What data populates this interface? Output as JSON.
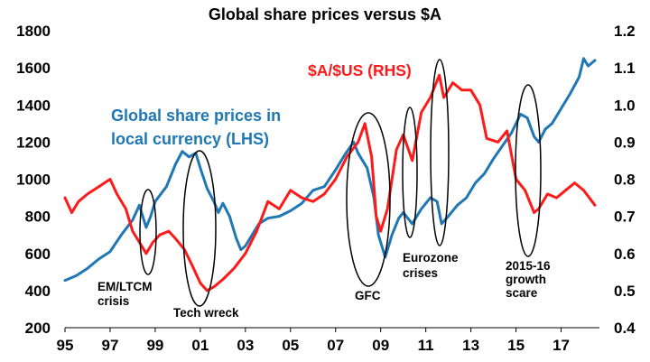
{
  "chart_data": {
    "type": "line",
    "title": "Global share prices versus $A",
    "x_axis": {
      "ticks": [
        "95",
        "97",
        "99",
        "01",
        "03",
        "05",
        "07",
        "09",
        "11",
        "13",
        "15",
        "17"
      ],
      "tick_values": [
        1995,
        1997,
        1999,
        2001,
        2003,
        2005,
        2007,
        2009,
        2011,
        2013,
        2015,
        2017
      ],
      "range": [
        1995,
        2018.7
      ]
    },
    "y_left": {
      "ticks": [
        "200",
        "400",
        "600",
        "800",
        "1000",
        "1200",
        "1400",
        "1600",
        "1800"
      ],
      "range": [
        200,
        1800
      ]
    },
    "y_right": {
      "ticks": [
        "0.4",
        "0.5",
        "0.6",
        "0.7",
        "0.8",
        "0.9",
        "1.0",
        "1.1",
        "1.2"
      ],
      "range": [
        0.4,
        1.2
      ]
    },
    "grid": false,
    "series": [
      {
        "name": "Global share prices in local currency (LHS)",
        "label_lines": [
          "Global share prices in",
          "local currency (LHS)"
        ],
        "axis": "left",
        "color": "#1f77b4",
        "points": [
          [
            1995.0,
            455
          ],
          [
            1995.5,
            480
          ],
          [
            1996.0,
            520
          ],
          [
            1996.5,
            570
          ],
          [
            1997.0,
            610
          ],
          [
            1997.5,
            700
          ],
          [
            1998.0,
            780
          ],
          [
            1998.3,
            860
          ],
          [
            1998.6,
            740
          ],
          [
            1998.8,
            800
          ],
          [
            1999.0,
            880
          ],
          [
            1999.5,
            960
          ],
          [
            1999.9,
            1080
          ],
          [
            2000.2,
            1150
          ],
          [
            2000.5,
            1120
          ],
          [
            2000.8,
            1140
          ],
          [
            2001.0,
            1060
          ],
          [
            2001.3,
            950
          ],
          [
            2001.6,
            880
          ],
          [
            2001.8,
            820
          ],
          [
            2002.0,
            870
          ],
          [
            2002.3,
            800
          ],
          [
            2002.6,
            680
          ],
          [
            2002.8,
            620
          ],
          [
            2003.0,
            640
          ],
          [
            2003.3,
            700
          ],
          [
            2003.6,
            760
          ],
          [
            2004.0,
            790
          ],
          [
            2004.5,
            800
          ],
          [
            2005.0,
            830
          ],
          [
            2005.5,
            870
          ],
          [
            2006.0,
            940
          ],
          [
            2006.5,
            960
          ],
          [
            2007.0,
            1050
          ],
          [
            2007.4,
            1130
          ],
          [
            2007.8,
            1200
          ],
          [
            2008.0,
            1140
          ],
          [
            2008.4,
            1060
          ],
          [
            2008.7,
            900
          ],
          [
            2008.9,
            700
          ],
          [
            2009.2,
            580
          ],
          [
            2009.5,
            700
          ],
          [
            2009.8,
            790
          ],
          [
            2010.0,
            820
          ],
          [
            2010.4,
            760
          ],
          [
            2010.8,
            840
          ],
          [
            2011.2,
            900
          ],
          [
            2011.5,
            880
          ],
          [
            2011.7,
            760
          ],
          [
            2012.0,
            800
          ],
          [
            2012.4,
            860
          ],
          [
            2012.8,
            900
          ],
          [
            2013.2,
            980
          ],
          [
            2013.6,
            1030
          ],
          [
            2014.0,
            1110
          ],
          [
            2014.4,
            1180
          ],
          [
            2014.8,
            1250
          ],
          [
            2015.2,
            1350
          ],
          [
            2015.5,
            1330
          ],
          [
            2015.8,
            1230
          ],
          [
            2016.0,
            1200
          ],
          [
            2016.3,
            1270
          ],
          [
            2016.6,
            1300
          ],
          [
            2017.0,
            1380
          ],
          [
            2017.4,
            1460
          ],
          [
            2017.8,
            1550
          ],
          [
            2018.0,
            1650
          ],
          [
            2018.2,
            1610
          ],
          [
            2018.5,
            1640
          ]
        ]
      },
      {
        "name": "$A/$US (RHS)",
        "label_lines": [
          "$A/$US  (RHS)"
        ],
        "axis": "right",
        "color": "#ff1a1a",
        "points": [
          [
            1995.0,
            0.75
          ],
          [
            1995.3,
            0.71
          ],
          [
            1995.6,
            0.74
          ],
          [
            1996.0,
            0.76
          ],
          [
            1996.5,
            0.78
          ],
          [
            1997.0,
            0.8
          ],
          [
            1997.3,
            0.76
          ],
          [
            1997.7,
            0.72
          ],
          [
            1998.0,
            0.66
          ],
          [
            1998.3,
            0.63
          ],
          [
            1998.6,
            0.6
          ],
          [
            1998.9,
            0.63
          ],
          [
            1999.2,
            0.65
          ],
          [
            1999.6,
            0.66
          ],
          [
            1999.9,
            0.64
          ],
          [
            2000.3,
            0.61
          ],
          [
            2000.7,
            0.56
          ],
          [
            2001.0,
            0.52
          ],
          [
            2001.3,
            0.5
          ],
          [
            2001.6,
            0.51
          ],
          [
            2002.0,
            0.53
          ],
          [
            2002.5,
            0.56
          ],
          [
            2003.0,
            0.6
          ],
          [
            2003.5,
            0.66
          ],
          [
            2004.0,
            0.74
          ],
          [
            2004.5,
            0.72
          ],
          [
            2005.0,
            0.77
          ],
          [
            2005.5,
            0.75
          ],
          [
            2006.0,
            0.74
          ],
          [
            2006.5,
            0.76
          ],
          [
            2007.0,
            0.8
          ],
          [
            2007.5,
            0.86
          ],
          [
            2008.0,
            0.9
          ],
          [
            2008.3,
            0.95
          ],
          [
            2008.6,
            0.86
          ],
          [
            2008.8,
            0.7
          ],
          [
            2009.0,
            0.66
          ],
          [
            2009.3,
            0.72
          ],
          [
            2009.7,
            0.88
          ],
          [
            2010.0,
            0.92
          ],
          [
            2010.4,
            0.85
          ],
          [
            2010.8,
            0.98
          ],
          [
            2011.2,
            1.02
          ],
          [
            2011.6,
            1.08
          ],
          [
            2011.8,
            1.02
          ],
          [
            2012.2,
            1.06
          ],
          [
            2012.6,
            1.04
          ],
          [
            2013.0,
            1.04
          ],
          [
            2013.4,
            1.0
          ],
          [
            2013.7,
            0.91
          ],
          [
            2014.2,
            0.9
          ],
          [
            2014.6,
            0.93
          ],
          [
            2015.0,
            0.8
          ],
          [
            2015.4,
            0.77
          ],
          [
            2015.8,
            0.71
          ],
          [
            2016.0,
            0.72
          ],
          [
            2016.4,
            0.76
          ],
          [
            2016.8,
            0.75
          ],
          [
            2017.2,
            0.77
          ],
          [
            2017.6,
            0.79
          ],
          [
            2018.0,
            0.77
          ],
          [
            2018.5,
            0.73
          ]
        ]
      }
    ],
    "annotations": [
      {
        "name": "em-ltcm-crisis",
        "lines": [
          "EM/LTCM",
          "crisis"
        ],
        "year": 1998.7
      },
      {
        "name": "tech-wreck",
        "lines": [
          "Tech wreck"
        ],
        "year": 2001.2
      },
      {
        "name": "gfc",
        "lines": [
          "GFC"
        ],
        "year": 2008.6
      },
      {
        "name": "eurozone-crises",
        "lines": [
          "Eurozone",
          "crises"
        ],
        "year": 2011.2
      },
      {
        "name": "growth-scare",
        "lines": [
          "2015-16",
          "growth",
          "scare"
        ],
        "year": 2015.8
      }
    ]
  }
}
